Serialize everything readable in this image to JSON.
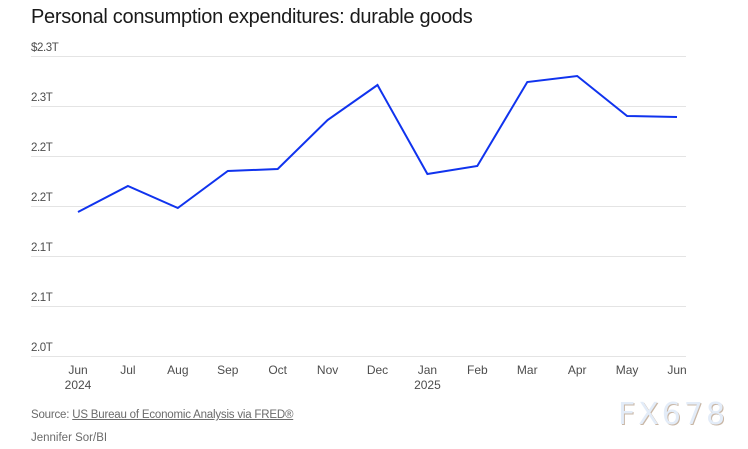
{
  "title": "Personal consumption expenditures: durable goods",
  "source_prefix": "Source: ",
  "source_link": "US Bureau of Economic Analysis via FRED®",
  "credit": "Jennifer Sor/BI",
  "watermark": "FX678",
  "colors": {
    "line": "#1033ee",
    "grid": "#e4e4e4",
    "text": "#4d4d4d"
  },
  "chart_data": {
    "type": "line",
    "title": "Personal consumption expenditures: durable goods",
    "xlabel": "",
    "ylabel": "",
    "ylim": [
      2.0,
      2.3
    ],
    "grid": true,
    "y_ticks": [
      {
        "value": 2.3,
        "label": "$2.3T"
      },
      {
        "value": 2.25,
        "label": "2.3T"
      },
      {
        "value": 2.2,
        "label": "2.2T"
      },
      {
        "value": 2.15,
        "label": "2.2T"
      },
      {
        "value": 2.1,
        "label": "2.1T"
      },
      {
        "value": 2.05,
        "label": "2.1T"
      },
      {
        "value": 2.0,
        "label": "2.0T"
      }
    ],
    "categories": [
      "Jun",
      "Jul",
      "Aug",
      "Sep",
      "Oct",
      "Nov",
      "Dec",
      "Jan",
      "Feb",
      "Mar",
      "Apr",
      "May",
      "Jun"
    ],
    "category_sublabels": [
      "2024",
      "",
      "",
      "",
      "",
      "",
      "",
      "2025",
      "",
      "",
      "",
      "",
      ""
    ],
    "series": [
      {
        "name": "Personal consumption expenditures: durable goods",
        "unit": "trillions USD",
        "values": [
          2.144,
          2.17,
          2.148,
          2.185,
          2.187,
          2.236,
          2.271,
          2.182,
          2.19,
          2.274,
          2.28,
          2.24,
          2.239
        ]
      }
    ]
  }
}
